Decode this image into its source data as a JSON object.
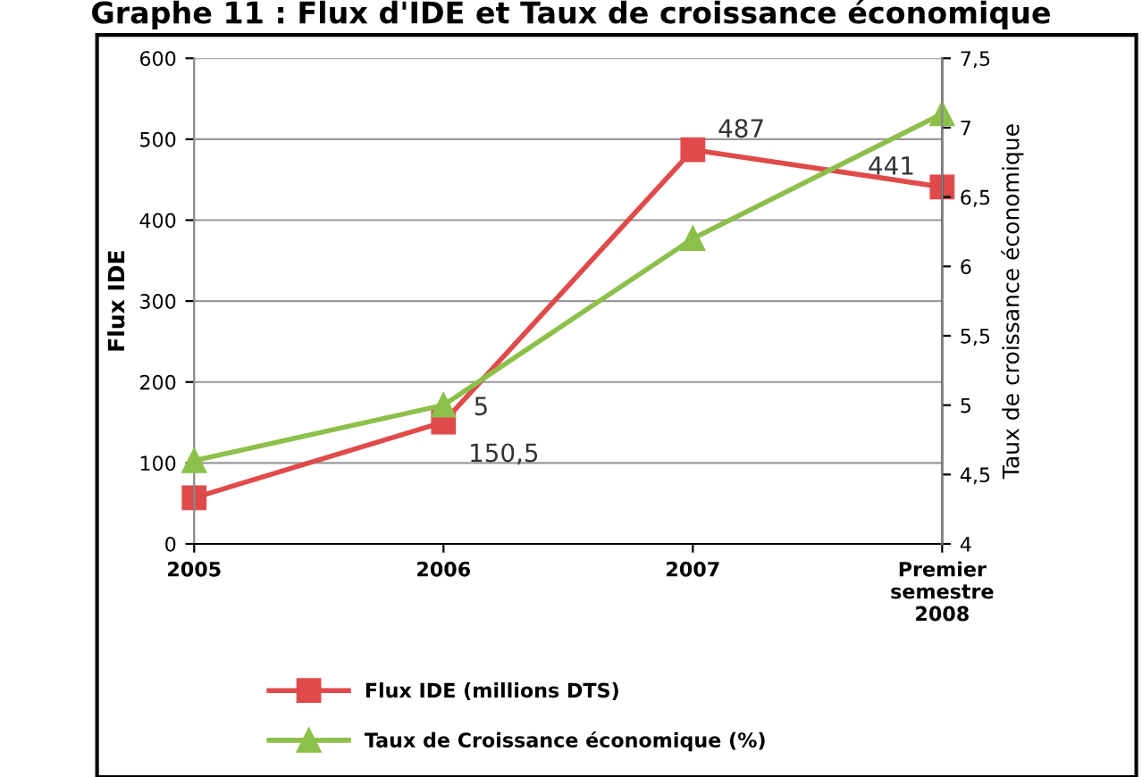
{
  "chart_data": {
    "type": "line",
    "title": "Graphe 11 : Flux d'IDE et Taux de croissance économique",
    "ylabel": "Flux IDE",
    "y2label": "Taux de croissance économique",
    "categories": [
      "2005",
      "2006",
      "2007",
      "Premier\nsemestre\n2008"
    ],
    "series": [
      {
        "name": "Flux IDE (millions DTS)",
        "color": "#e04a4a",
        "values": [
          57,
          150.5,
          487,
          441
        ],
        "marker": "square",
        "value_labels": [
          null,
          "150,5",
          "487",
          "441"
        ]
      },
      {
        "name": "Taux de Croissance économique (%)",
        "color": "#8cc04a",
        "values": [
          4.6,
          5.0,
          6.2,
          7.1
        ],
        "marker": "triangle",
        "axis": "y2",
        "value_labels": [
          null,
          "5",
          null,
          null
        ]
      }
    ],
    "ylim": [
      0,
      600
    ],
    "yticks": [
      0,
      100,
      200,
      300,
      400,
      500,
      600
    ],
    "y2lim": [
      4,
      7.5
    ],
    "y2ticks": [
      4,
      {
        "value": 4.5,
        "label": "4,5"
      },
      5,
      {
        "value": 5.5,
        "label": "5,5"
      },
      6,
      {
        "value": 6.5,
        "label": "6,5"
      },
      7,
      {
        "value": 7.5,
        "label": "7,5"
      }
    ],
    "grid": "y",
    "legend": "bottom"
  }
}
